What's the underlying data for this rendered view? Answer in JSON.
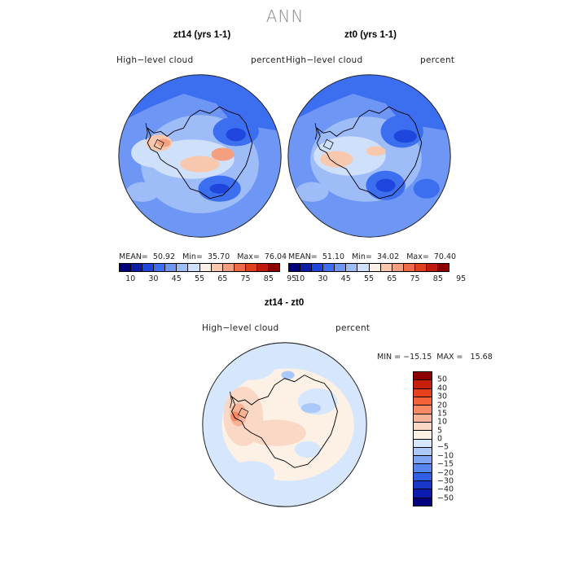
{
  "title": "ANN",
  "panels": [
    {
      "title": "zt14 (yrs 1-1)",
      "variable": "High−level  cloud",
      "units": "percent",
      "stats": {
        "mean_label": "MEAN=",
        "mean": "50.92",
        "min_label": "Min=",
        "min": "35.70",
        "max_label": "Max=",
        "max": "76.04"
      }
    },
    {
      "title": "zt0 (yrs 1-1)",
      "variable": "High−level  cloud",
      "units": "percent",
      "stats": {
        "mean_label": "MEAN=",
        "mean": "51.10",
        "min_label": "Min=",
        "min": "34.02",
        "max_label": "Max=",
        "max": "70.40"
      }
    }
  ],
  "diff_panel": {
    "title": "zt14 - zt0",
    "variable": "High−level  cloud",
    "units": "percent",
    "range_text": "MIN = −15.15  MAX =   15.68"
  },
  "abs_colorbar": {
    "colors": [
      "#00007f",
      "#0a1ea8",
      "#1e46dc",
      "#3c6ef0",
      "#6e96f5",
      "#9ebcf8",
      "#cfe0fb",
      "#f8efe6",
      "#f8c8ae",
      "#f4a080",
      "#ef6a46",
      "#e0401e",
      "#c01a0a",
      "#8c0000"
    ],
    "tick_labels": [
      "10",
      "30",
      "45",
      "55",
      "65",
      "75",
      "85",
      "95"
    ]
  },
  "diff_colorbar": {
    "colors": [
      "#8c0000",
      "#c81e0a",
      "#e8401e",
      "#f46238",
      "#f78a62",
      "#f9b394",
      "#fbd7c6",
      "#fdf1e6",
      "#d6e6fc",
      "#aac8f8",
      "#7ea6f3",
      "#5686ee",
      "#305ee4",
      "#1838cc",
      "#0a1cb0",
      "#00007f"
    ],
    "tick_labels": [
      "50",
      "40",
      "30",
      "20",
      "15",
      "10",
      "5",
      "0",
      "−5",
      "−10",
      "−15",
      "−20",
      "−30",
      "−40",
      "−50"
    ]
  },
  "colors": {
    "title_gray": "#8a8a8a",
    "coast": "#000000"
  }
}
